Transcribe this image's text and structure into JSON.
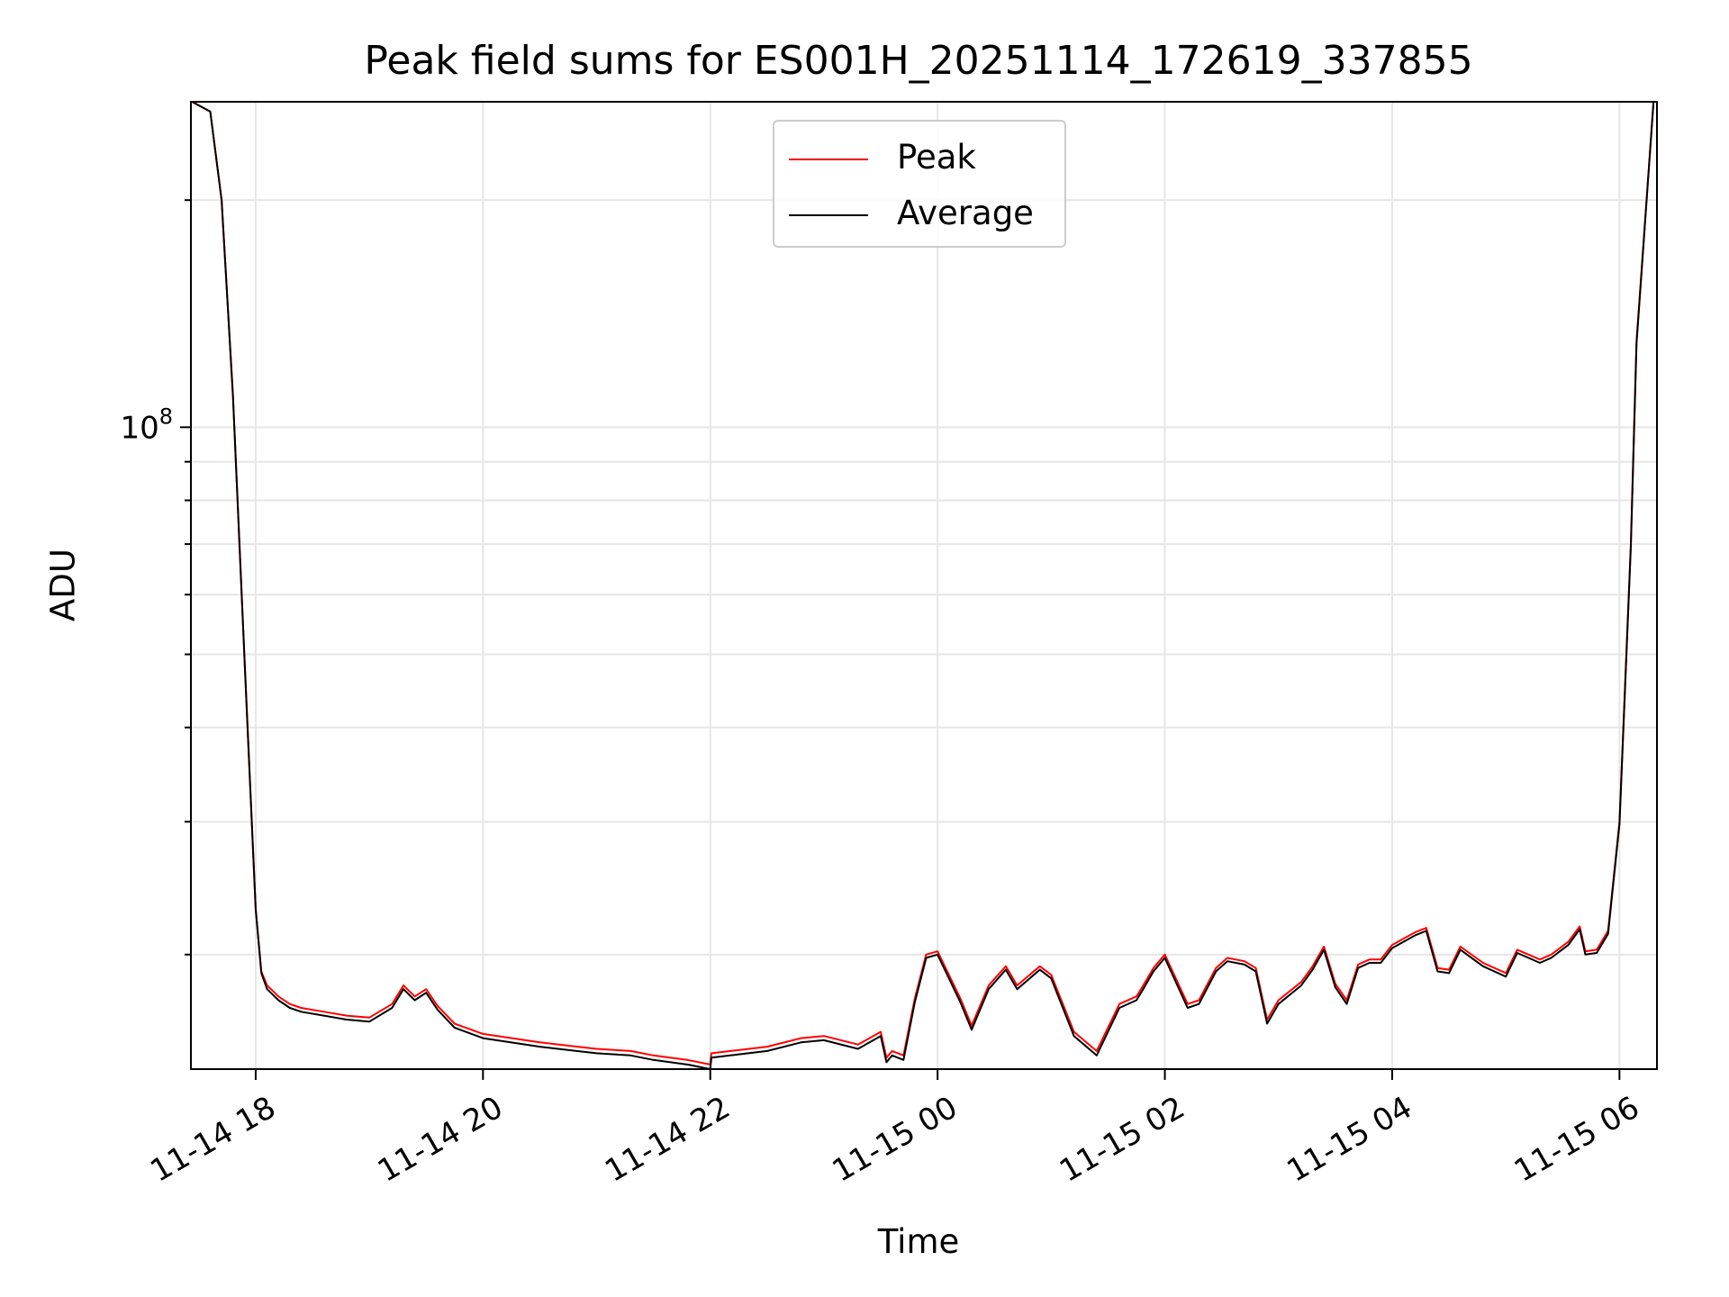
{
  "chart_data": {
    "type": "line",
    "title": "Peak field sums for ES001H_20251114_172619_337855",
    "xlabel": "Time",
    "ylabel": "ADU",
    "yscale": "log",
    "ylim": [
      14100000,
      270000000
    ],
    "y_ticks": [
      {
        "value": 100000000,
        "base": "10",
        "exp": "8"
      }
    ],
    "x_ticks": [
      "11-14 18",
      "11-14 20",
      "11-14 22",
      "11-15 00",
      "11-15 02",
      "11-15 04",
      "11-15 06"
    ],
    "x_tick_hours": [
      18,
      20,
      22,
      24,
      26,
      28,
      30
    ],
    "xlim_hours": [
      17.43,
      30.33
    ],
    "grid": true,
    "legend_position": "top-center",
    "series": [
      {
        "name": "Peak",
        "color": "#ff0000",
        "x_hours": [
          17.44,
          17.6,
          17.7,
          17.8,
          17.9,
          18.0,
          18.05,
          18.1,
          18.15,
          18.2,
          18.3,
          18.4,
          18.6,
          18.8,
          19.0,
          19.2,
          19.3,
          19.4,
          19.5,
          19.6,
          19.75,
          20.0,
          20.5,
          21.0,
          21.3,
          21.5,
          21.8,
          22.0,
          22.01,
          22.5,
          22.8,
          23.0,
          23.3,
          23.5,
          23.55,
          23.6,
          23.7,
          23.8,
          23.9,
          24.0,
          24.2,
          24.3,
          24.45,
          24.6,
          24.7,
          24.9,
          25.0,
          25.2,
          25.4,
          25.6,
          25.75,
          25.8,
          25.9,
          26.0,
          26.2,
          26.3,
          26.45,
          26.55,
          26.7,
          26.8,
          26.9,
          27.0,
          27.2,
          27.3,
          27.4,
          27.5,
          27.6,
          27.7,
          27.8,
          27.9,
          28.0,
          28.1,
          28.2,
          28.3,
          28.4,
          28.5,
          28.6,
          28.8,
          29.0,
          29.1,
          29.3,
          29.4,
          29.55,
          29.65,
          29.7,
          29.8,
          29.9,
          30.0,
          30.1,
          30.15,
          30.3
        ],
        "values": [
          270000000,
          262000000,
          200000000,
          110000000,
          50000000,
          23000000,
          19000000,
          18200000,
          17900000,
          17600000,
          17200000,
          17000000,
          16800000,
          16600000,
          16500000,
          17200000,
          18200000,
          17600000,
          18000000,
          17100000,
          16200000,
          15700000,
          15300000,
          15000000,
          14900000,
          14700000,
          14500000,
          14300000,
          14800000,
          15100000,
          15500000,
          15600000,
          15200000,
          15800000,
          14600000,
          14900000,
          14700000,
          17500000,
          20000000,
          20200000,
          17500000,
          16100000,
          18200000,
          19300000,
          18200000,
          19300000,
          18800000,
          15800000,
          14900000,
          17200000,
          17600000,
          18100000,
          19200000,
          20000000,
          17200000,
          17400000,
          19200000,
          19800000,
          19600000,
          19200000,
          16400000,
          17400000,
          18400000,
          19300000,
          20500000,
          18300000,
          17400000,
          19400000,
          19700000,
          19700000,
          20600000,
          21000000,
          21400000,
          21700000,
          19200000,
          19100000,
          20500000,
          19500000,
          18900000,
          20300000,
          19700000,
          20000000,
          20800000,
          21800000,
          20200000,
          20300000,
          21500000,
          30000000,
          70000000,
          130000000,
          270000000
        ]
      },
      {
        "name": "Average",
        "color": "#000000",
        "x_hours": [
          17.44,
          17.6,
          17.7,
          17.8,
          17.9,
          18.0,
          18.05,
          18.1,
          18.15,
          18.2,
          18.3,
          18.4,
          18.6,
          18.8,
          19.0,
          19.2,
          19.3,
          19.4,
          19.5,
          19.6,
          19.75,
          20.0,
          20.5,
          21.0,
          21.3,
          21.5,
          21.8,
          22.0,
          22.01,
          22.5,
          22.8,
          23.0,
          23.3,
          23.5,
          23.55,
          23.6,
          23.7,
          23.8,
          23.9,
          24.0,
          24.2,
          24.3,
          24.45,
          24.6,
          24.7,
          24.9,
          25.0,
          25.2,
          25.4,
          25.6,
          25.75,
          25.8,
          25.9,
          26.0,
          26.2,
          26.3,
          26.45,
          26.55,
          26.7,
          26.8,
          26.9,
          27.0,
          27.2,
          27.3,
          27.4,
          27.5,
          27.6,
          27.7,
          27.8,
          27.9,
          28.0,
          28.1,
          28.2,
          28.3,
          28.4,
          28.5,
          28.6,
          28.8,
          29.0,
          29.1,
          29.3,
          29.4,
          29.55,
          29.65,
          29.7,
          29.8,
          29.9,
          30.0,
          30.1,
          30.15,
          30.3
        ],
        "values": [
          270000000,
          262000000,
          200000000,
          110000000,
          50000000,
          23000000,
          18900000,
          18000000,
          17700000,
          17400000,
          17000000,
          16800000,
          16600000,
          16400000,
          16300000,
          17000000,
          18000000,
          17400000,
          17800000,
          16900000,
          16000000,
          15500000,
          15100000,
          14800000,
          14700000,
          14500000,
          14300000,
          14100000,
          14600000,
          14900000,
          15300000,
          15400000,
          15000000,
          15600000,
          14400000,
          14700000,
          14500000,
          17300000,
          19800000,
          20000000,
          17300000,
          15900000,
          18000000,
          19100000,
          18000000,
          19100000,
          18600000,
          15600000,
          14700000,
          17000000,
          17400000,
          17900000,
          19000000,
          19800000,
          17000000,
          17200000,
          19000000,
          19600000,
          19400000,
          19000000,
          16200000,
          17200000,
          18200000,
          19100000,
          20300000,
          18100000,
          17200000,
          19200000,
          19500000,
          19500000,
          20400000,
          20800000,
          21200000,
          21500000,
          19000000,
          18900000,
          20300000,
          19300000,
          18700000,
          20100000,
          19500000,
          19800000,
          20600000,
          21600000,
          20000000,
          20100000,
          21300000,
          29800000,
          69500000,
          129000000,
          270000000
        ]
      }
    ]
  }
}
